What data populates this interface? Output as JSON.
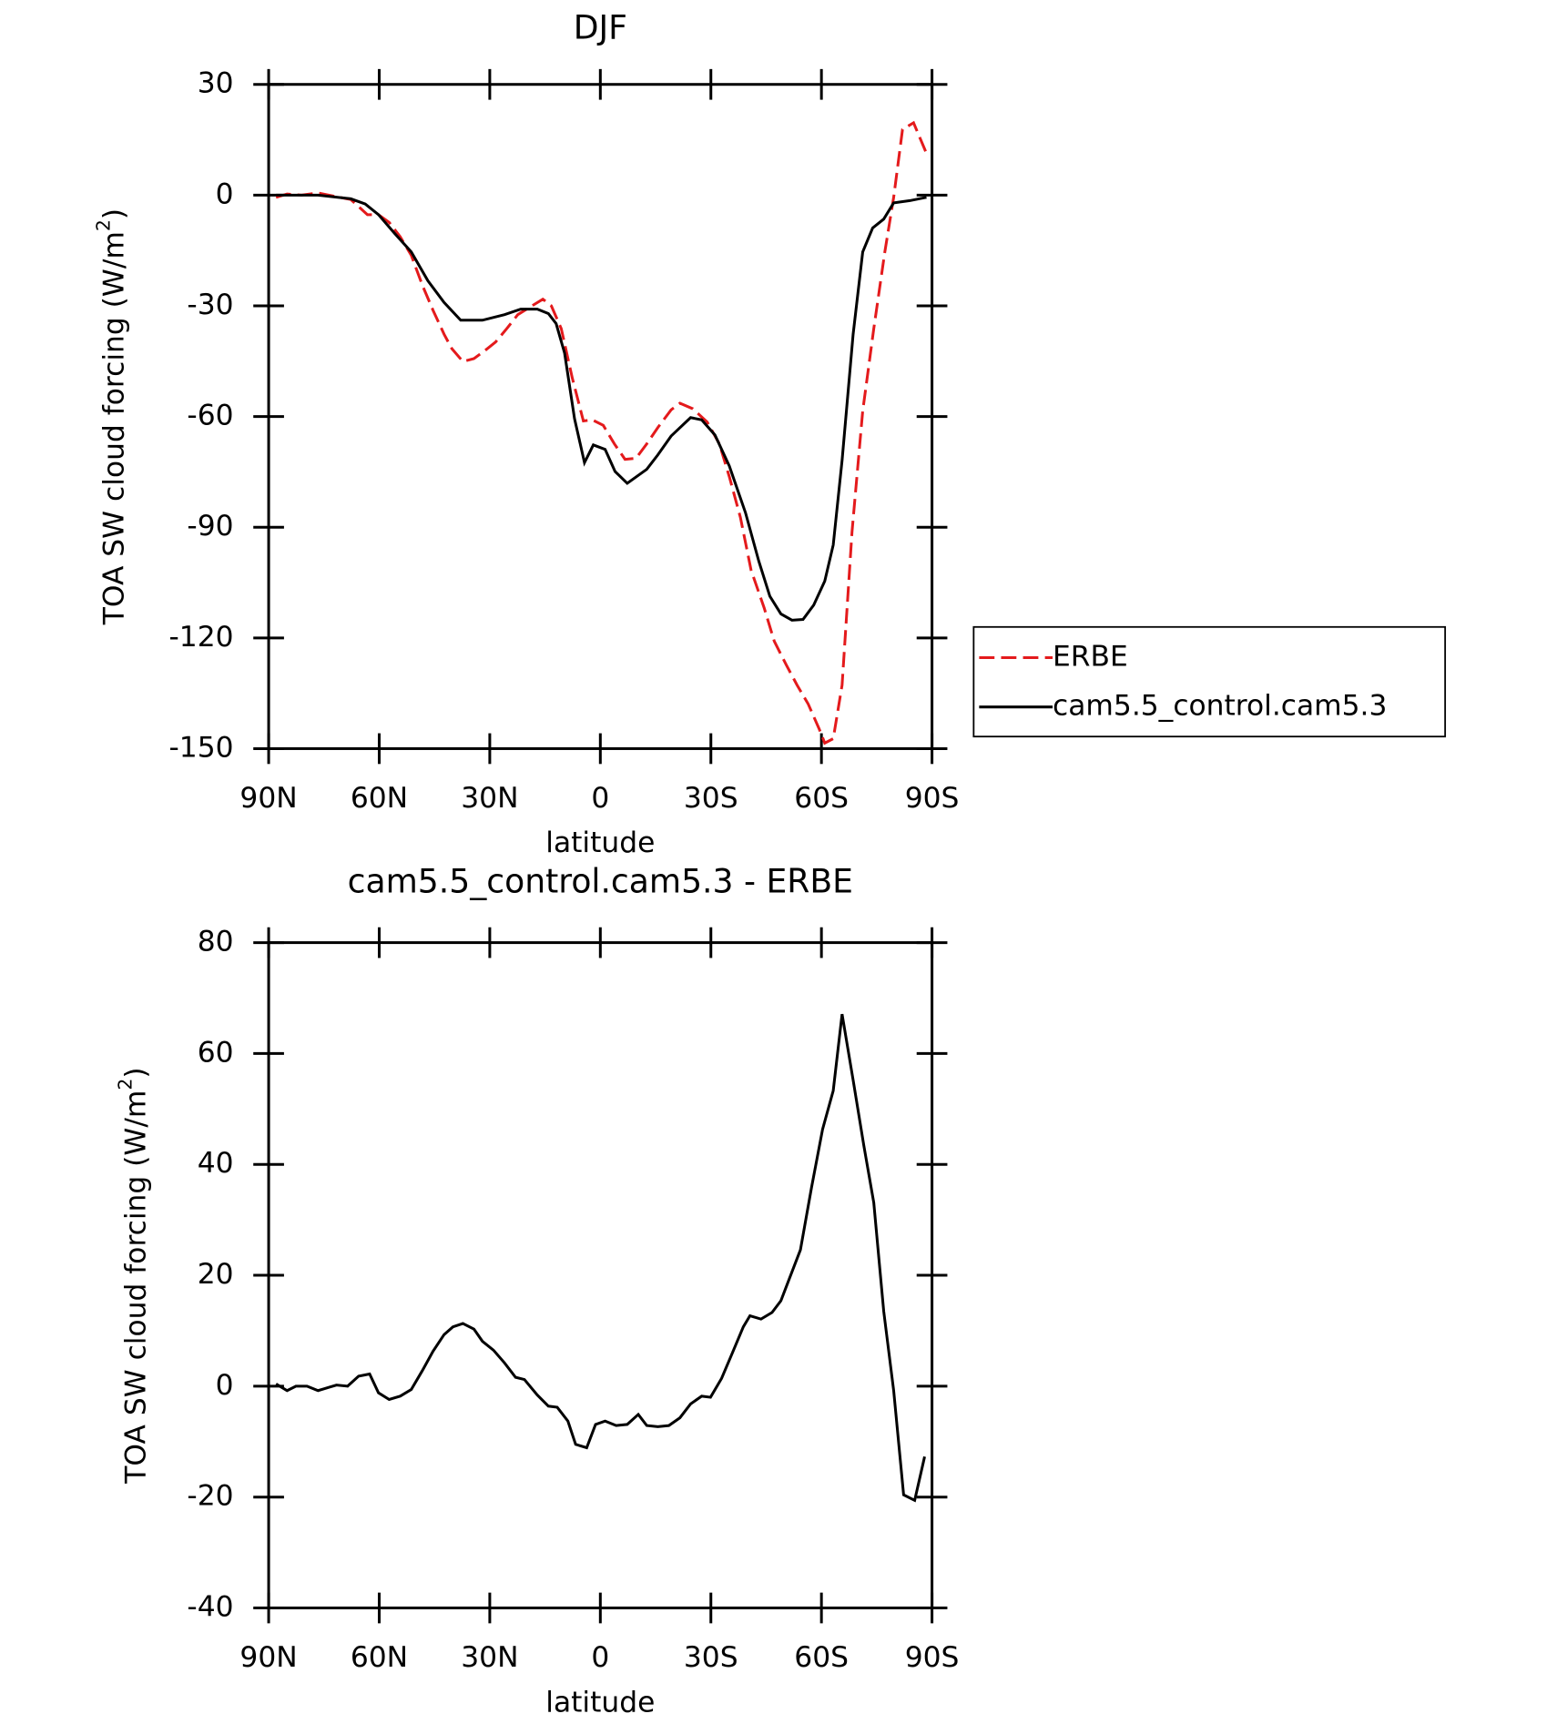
{
  "chart_data": [
    {
      "type": "line",
      "title": "DJF",
      "xlabel": "latitude",
      "ylabel": "TOA SW cloud forcing (W/m",
      "ylabel_sup": "2",
      "ylabel_end": ")",
      "xlim": [
        90,
        -90
      ],
      "xticks": [
        {
          "value": 90,
          "label": "90N"
        },
        {
          "value": 60,
          "label": "60N"
        },
        {
          "value": 30,
          "label": "30N"
        },
        0,
        {
          "value": -30,
          "label": "30S"
        },
        {
          "value": -60,
          "label": "60S"
        },
        {
          "value": -90,
          "label": "90S"
        }
      ],
      "ylim": [
        -150,
        30
      ],
      "yticks": [
        -150,
        -120,
        -90,
        -60,
        -30,
        0,
        30
      ],
      "legend": "right",
      "series": [
        {
          "name": "ERBE",
          "color": "#e41a1c",
          "dash": true,
          "x": [
            88,
            85,
            81.1,
            76.6,
            72.2,
            67.7,
            63.2,
            60.2,
            57.3,
            54.3,
            51.3,
            48.3,
            45.4,
            42.4,
            40.3,
            37.3,
            34.3,
            31.4,
            28.4,
            25.4,
            22.4,
            19.5,
            15.6,
            13.3,
            10.6,
            7.6,
            4.6,
            2.2,
            -0.8,
            -3.8,
            -6.7,
            -9.7,
            -12.6,
            -15.6,
            -19.2,
            -21.6,
            -25.1,
            -29,
            -32.3,
            -35,
            -38,
            -40.9,
            -44.5,
            -47.2,
            -50.5,
            -53.4,
            -56.4,
            -59.4,
            -60.9,
            -63.2,
            -65.6,
            -68.3,
            -71.2,
            -74.2,
            -77.2,
            -79.6,
            -82,
            -85,
            -88.5
          ],
          "values": [
            -0.6,
            0.3,
            0,
            0.6,
            -0.3,
            -1.2,
            -5.3,
            -5.3,
            -7.4,
            -11.3,
            -16.3,
            -24.4,
            -31.2,
            -37.7,
            -41.6,
            -45.1,
            -44.3,
            -42.2,
            -39.8,
            -36.2,
            -32.4,
            -30.6,
            -28.2,
            -30,
            -36.2,
            -49.6,
            -61.2,
            -60.9,
            -62.4,
            -67.4,
            -71.6,
            -71.3,
            -67.4,
            -63,
            -58.2,
            -56.4,
            -57.9,
            -61.5,
            -67.4,
            -76.3,
            -87.3,
            -101.6,
            -112,
            -120.9,
            -127.4,
            -132.8,
            -137.9,
            -144.7,
            -148.5,
            -147.3,
            -132.8,
            -91.2,
            -58.5,
            -36.2,
            -15.4,
            -0.6,
            17.8,
            19.6,
            11.3
          ]
        },
        {
          "name": "cam5.5_control.cam5.3",
          "color": "#000000",
          "dash": false,
          "x": [
            88,
            76.6,
            67.7,
            63.8,
            60.2,
            55.8,
            51.3,
            46.8,
            42.4,
            37.9,
            32,
            26,
            21.6,
            17.1,
            14.1,
            12,
            9.7,
            7,
            4.3,
            1.9,
            -1.3,
            -4,
            -7.3,
            -12.6,
            -15.6,
            -19.2,
            -24.5,
            -27.5,
            -31.1,
            -35,
            -39.4,
            -43,
            -46,
            -49,
            -52,
            -55,
            -57.9,
            -60.9,
            -63.2,
            -65.6,
            -68.6,
            -71.2,
            -73.9,
            -76.9,
            -79.6,
            -84,
            -88.5
          ],
          "values": [
            0,
            0,
            -1,
            -2.4,
            -5.3,
            -10.4,
            -15.4,
            -23.2,
            -29.1,
            -33.9,
            -33.9,
            -32.4,
            -30.9,
            -30.9,
            -32.1,
            -34.8,
            -42.8,
            -60.6,
            -72.5,
            -67.7,
            -68.9,
            -74.9,
            -78.1,
            -74.3,
            -70.4,
            -65.3,
            -60.3,
            -60.9,
            -65,
            -73.4,
            -86.1,
            -99.2,
            -108.7,
            -113.5,
            -115.2,
            -115,
            -111.1,
            -104.6,
            -94.8,
            -71.9,
            -37.7,
            -15.4,
            -8.9,
            -6.5,
            -2.1,
            -1.5,
            -0.6
          ]
        }
      ]
    },
    {
      "type": "line",
      "title": "cam5.5_control.cam5.3 - ERBE",
      "xlabel": "latitude",
      "ylabel": "TOA SW cloud forcing (W/m",
      "ylabel_sup": "2",
      "ylabel_end": ")",
      "xlim": [
        90,
        -90
      ],
      "xticks": [
        {
          "value": 90,
          "label": "90N"
        },
        {
          "value": 60,
          "label": "60N"
        },
        {
          "value": 30,
          "label": "30N"
        },
        0,
        {
          "value": -30,
          "label": "30S"
        },
        {
          "value": -60,
          "label": "60S"
        },
        {
          "value": -90,
          "label": "90S"
        }
      ],
      "ylim": [
        -40,
        80
      ],
      "yticks": [
        -40,
        -20,
        0,
        20,
        40,
        60,
        80
      ],
      "series": [
        {
          "color": "#000000",
          "dash": false,
          "x": [
            88,
            85,
            82.6,
            79.6,
            76.6,
            73.6,
            71.6,
            68.6,
            65.6,
            62.6,
            60.2,
            57.3,
            54.3,
            51.3,
            48.3,
            45.4,
            42.4,
            40,
            37.3,
            34.3,
            32,
            29,
            26,
            23,
            20.6,
            17.1,
            14.1,
            11.7,
            8.8,
            6.7,
            3.7,
            1.3,
            -1.3,
            -4.3,
            -7.3,
            -10.3,
            -12.6,
            -15.6,
            -18.6,
            -21.6,
            -24.5,
            -27.5,
            -29.9,
            -32.9,
            -35.9,
            -38.8,
            -40.6,
            -43.6,
            -46.6,
            -49,
            -51.3,
            -54.3,
            -57.3,
            -60.3,
            -63.2,
            -65.6,
            -68.6,
            -71.5,
            -74.2,
            -76.9,
            -79.6,
            -82.3,
            -85.3,
            -88
          ],
          "values": [
            0.4,
            -0.8,
            0,
            0,
            -0.8,
            -0.2,
            0.2,
            0,
            1.8,
            2.2,
            -1.2,
            -2.4,
            -1.8,
            -0.6,
            2.8,
            6.3,
            9.3,
            10.7,
            11.3,
            10.3,
            8.1,
            6.5,
            4.2,
            1.6,
            1.2,
            -1.6,
            -3.6,
            -3.8,
            -6.3,
            -10.5,
            -11.1,
            -6.9,
            -6.3,
            -7.1,
            -6.9,
            -5.1,
            -7.1,
            -7.3,
            -7.1,
            -5.7,
            -3.2,
            -1.8,
            -2,
            1.4,
            6.1,
            10.7,
            12.7,
            12.1,
            13.3,
            15.4,
            19.4,
            24.6,
            35.8,
            46.3,
            53.3,
            67.1,
            55.2,
            43.4,
            33.1,
            13.5,
            -0.8,
            -19.6,
            -20.6,
            -12.7
          ]
        }
      ]
    }
  ]
}
